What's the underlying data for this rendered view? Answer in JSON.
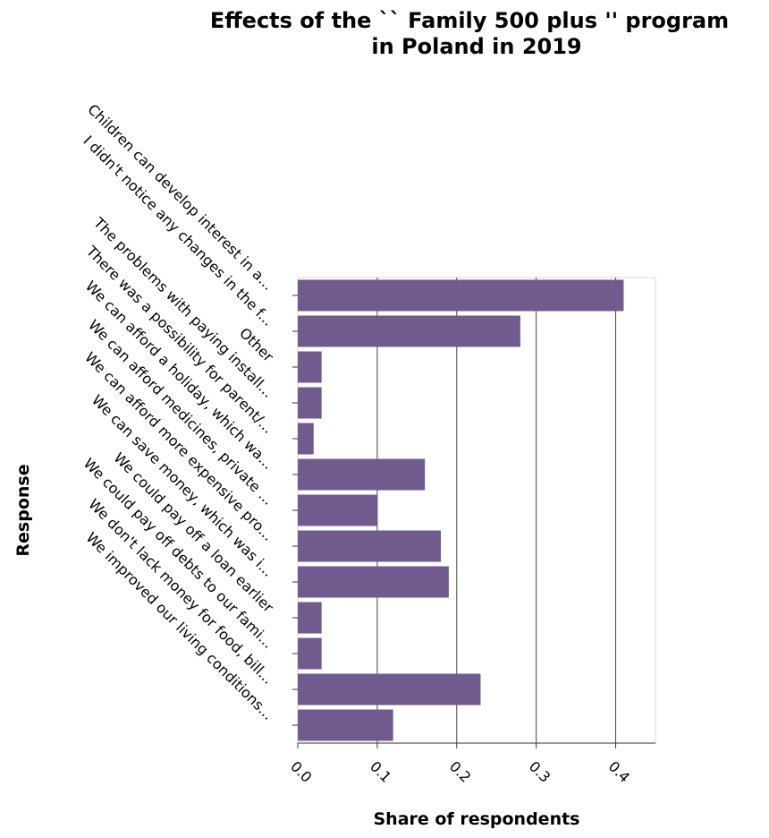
{
  "chart_data": {
    "type": "bar",
    "orientation": "horizontal",
    "title": "Effects of the `` Family 500 plus '' program in Poland in 2019",
    "title_lines": [
      "Effects of the `` Family 500 plus '' program",
      "in Poland in 2019"
    ],
    "xlabel": "Share of respondents",
    "ylabel": "Response",
    "xlim": [
      0,
      0.45
    ],
    "x_ticks": [
      "0.0",
      "0.1",
      "0.2",
      "0.3",
      "0.4"
    ],
    "x_tick_values": [
      0,
      0.1,
      0.2,
      0.3,
      0.4
    ],
    "grid": "vertical",
    "bar_color": "#715a8e",
    "categories": [
      "Children can develop interest in a...",
      "I didn't notice any changes in the f...",
      "Other",
      "The problems with paying install...",
      "There was a possibility for parent/...",
      "We can afford a holiday, which wa...",
      "We can afford medicines, private ...",
      "We can afford more expensive pro...",
      "We can save money, which was i...",
      "We could pay off a loan earlier",
      "We could pay off debts to our fami...",
      "We don't lack money for food, bill...",
      "We improved our living conditions..."
    ],
    "values": [
      0.41,
      0.28,
      0.03,
      0.03,
      0.02,
      0.16,
      0.1,
      0.18,
      0.19,
      0.03,
      0.03,
      0.23,
      0.12
    ]
  }
}
